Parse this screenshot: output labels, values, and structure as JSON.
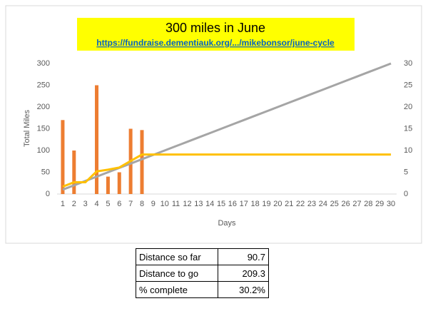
{
  "chart_data": {
    "type": "combo",
    "title": "300 miles in June",
    "subtitle": "https://fundraise.dementiauk.org/.../mikebonsor/june-cycle",
    "x_label": "Days",
    "y_label": "Total Miles",
    "categories": [
      "1",
      "2",
      "3",
      "4",
      "5",
      "6",
      "7",
      "8",
      "9",
      "10",
      "11",
      "12",
      "13",
      "14",
      "15",
      "16",
      "17",
      "18",
      "19",
      "20",
      "21",
      "22",
      "23",
      "24",
      "25",
      "26",
      "27",
      "28",
      "29",
      "30"
    ],
    "series": [
      {
        "type": "bar",
        "axis": "y2",
        "color": "#ed7d31",
        "values": [
          17,
          10,
          0,
          25,
          4,
          5,
          15,
          14.7,
          null,
          null,
          null,
          null,
          null,
          null,
          null,
          null,
          null,
          null,
          null,
          null,
          null,
          null,
          null,
          null,
          null,
          null,
          null,
          null,
          null,
          null
        ]
      },
      {
        "type": "line",
        "color": "#a5a5a5",
        "values": [
          10,
          20,
          30,
          40,
          50,
          60,
          70,
          80,
          90,
          100,
          110,
          120,
          130,
          140,
          150,
          160,
          170,
          180,
          190,
          200,
          210,
          220,
          230,
          240,
          250,
          260,
          270,
          280,
          290,
          300
        ]
      },
      {
        "type": "line",
        "color": "#ffc000",
        "values": [
          17,
          27,
          27,
          52,
          56,
          61,
          76,
          90.7,
          90.7,
          90.7,
          90.7,
          90.7,
          90.7,
          90.7,
          90.7,
          90.7,
          90.7,
          90.7,
          90.7,
          90.7,
          90.7,
          90.7,
          90.7,
          90.7,
          90.7,
          90.7,
          90.7,
          90.7,
          90.7,
          90.7
        ]
      }
    ],
    "ylim": [
      0,
      300
    ],
    "yticks": [
      0,
      50,
      100,
      150,
      200,
      250,
      300
    ],
    "y2lim": [
      0,
      30
    ],
    "y2ticks": [
      0,
      5,
      10,
      15,
      20,
      25,
      30
    ],
    "grid": false
  },
  "table": {
    "rows": [
      [
        "Distance so far",
        "90.7"
      ],
      [
        "Distance to go",
        "209.3"
      ],
      [
        "% complete",
        "30.2%"
      ]
    ]
  }
}
